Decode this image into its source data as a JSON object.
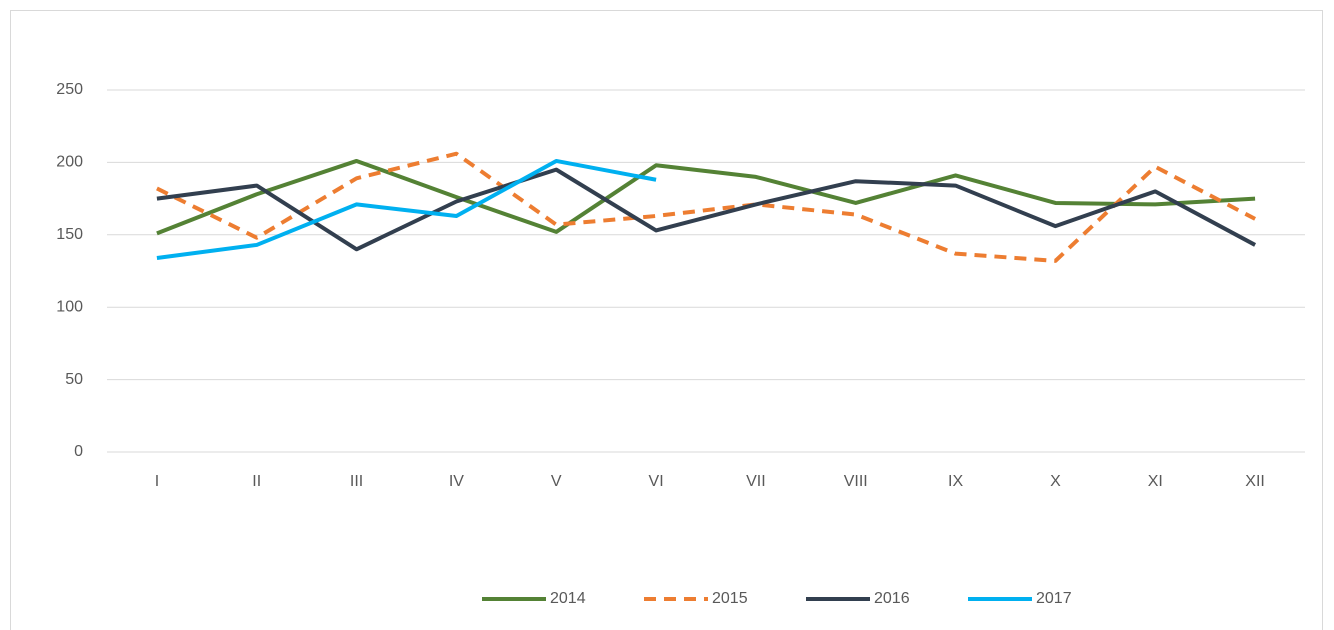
{
  "chart_data": {
    "type": "line",
    "categories": [
      "I",
      "II",
      "III",
      "IV",
      "V",
      "VI",
      "VII",
      "VIII",
      "IX",
      "X",
      "XI",
      "XII"
    ],
    "series": [
      {
        "name": "2014",
        "color": "#548235",
        "dash": false,
        "values": [
          151,
          178,
          201,
          176,
          152,
          198,
          190,
          172,
          191,
          172,
          171,
          175
        ]
      },
      {
        "name": "2015",
        "color": "#ed7d31",
        "dash": true,
        "values": [
          182,
          148,
          189,
          206,
          157,
          163,
          171,
          164,
          137,
          132,
          197,
          161
        ]
      },
      {
        "name": "2016",
        "color": "#323f4f",
        "dash": false,
        "values": [
          175,
          184,
          140,
          173,
          195,
          153,
          171,
          187,
          184,
          156,
          180,
          143
        ]
      },
      {
        "name": "2017",
        "color": "#00b0f0",
        "dash": false,
        "values": [
          134,
          143,
          171,
          163,
          201,
          188,
          null,
          null,
          null,
          null,
          null,
          null
        ]
      }
    ],
    "ylim": [
      0,
      250
    ],
    "yticks": [
      0,
      50,
      100,
      150,
      200,
      250
    ],
    "grid": true,
    "legend": "bottom"
  }
}
